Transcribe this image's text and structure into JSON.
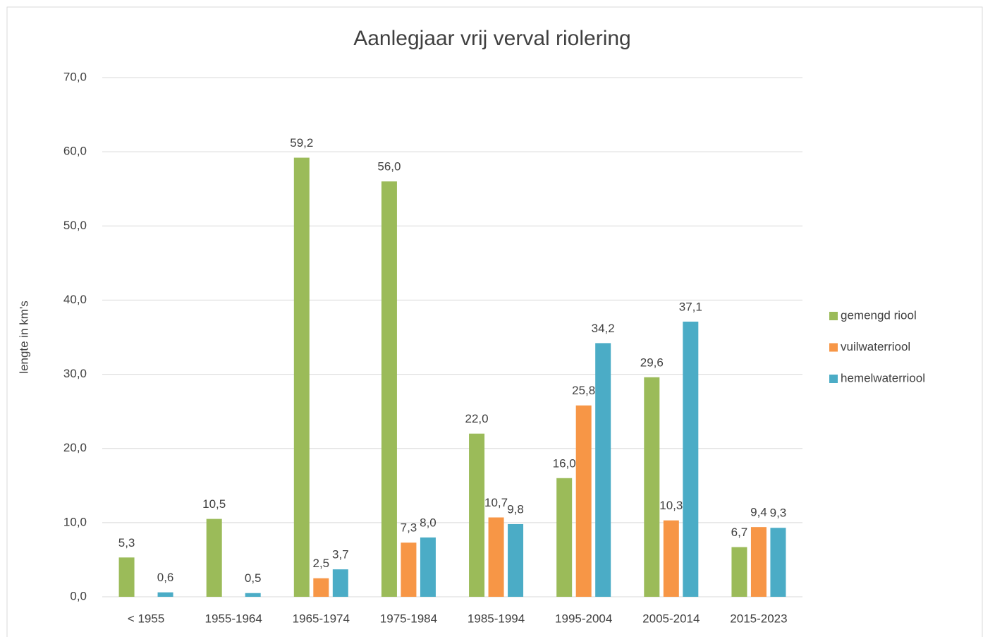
{
  "chart_data": {
    "type": "bar",
    "title": "Aanlegjaar vrij verval riolering",
    "y_label": "lengte in km's",
    "categories": [
      "< 1955",
      "1955-1964",
      "1965-1974",
      "1975-1984",
      "1985-1994",
      "1995-2004",
      "2005-2014",
      "2015-2023"
    ],
    "series": [
      {
        "name": "gemengd riool",
        "color": "#9bbb59",
        "values": [
          5.3,
          10.5,
          59.2,
          56.0,
          22.0,
          16.0,
          29.6,
          6.7
        ],
        "value_labels": [
          "5,3",
          "10,5",
          "59,2",
          "56,0",
          "22,0",
          "16,0",
          "29,6",
          "6,7"
        ]
      },
      {
        "name": "vuilwaterriool",
        "color": "#f79646",
        "values": [
          null,
          null,
          2.5,
          7.3,
          10.7,
          25.8,
          10.3,
          9.4
        ],
        "value_labels": [
          null,
          null,
          "2,5",
          "7,3",
          "10,7",
          "25,8",
          "10,3",
          "9,4"
        ]
      },
      {
        "name": "hemelwaterriool",
        "color": "#4bacc6",
        "values": [
          0.6,
          0.5,
          3.7,
          8.0,
          9.8,
          34.2,
          37.1,
          9.3
        ],
        "value_labels": [
          "0,6",
          "0,5",
          "3,7",
          "8,0",
          "9,8",
          "34,2",
          "37,1",
          "9,3"
        ]
      }
    ],
    "ylim": [
      0,
      70
    ],
    "yticks": [
      {
        "value": 0,
        "label": "0,0"
      },
      {
        "value": 10,
        "label": "10,0"
      },
      {
        "value": 20,
        "label": "20,0"
      },
      {
        "value": 30,
        "label": "30,0"
      },
      {
        "value": 40,
        "label": "40,0"
      },
      {
        "value": 50,
        "label": "50,0"
      },
      {
        "value": 60,
        "label": "60,0"
      },
      {
        "value": 70,
        "label": "70,0"
      }
    ],
    "grid": true,
    "legend": "right"
  }
}
